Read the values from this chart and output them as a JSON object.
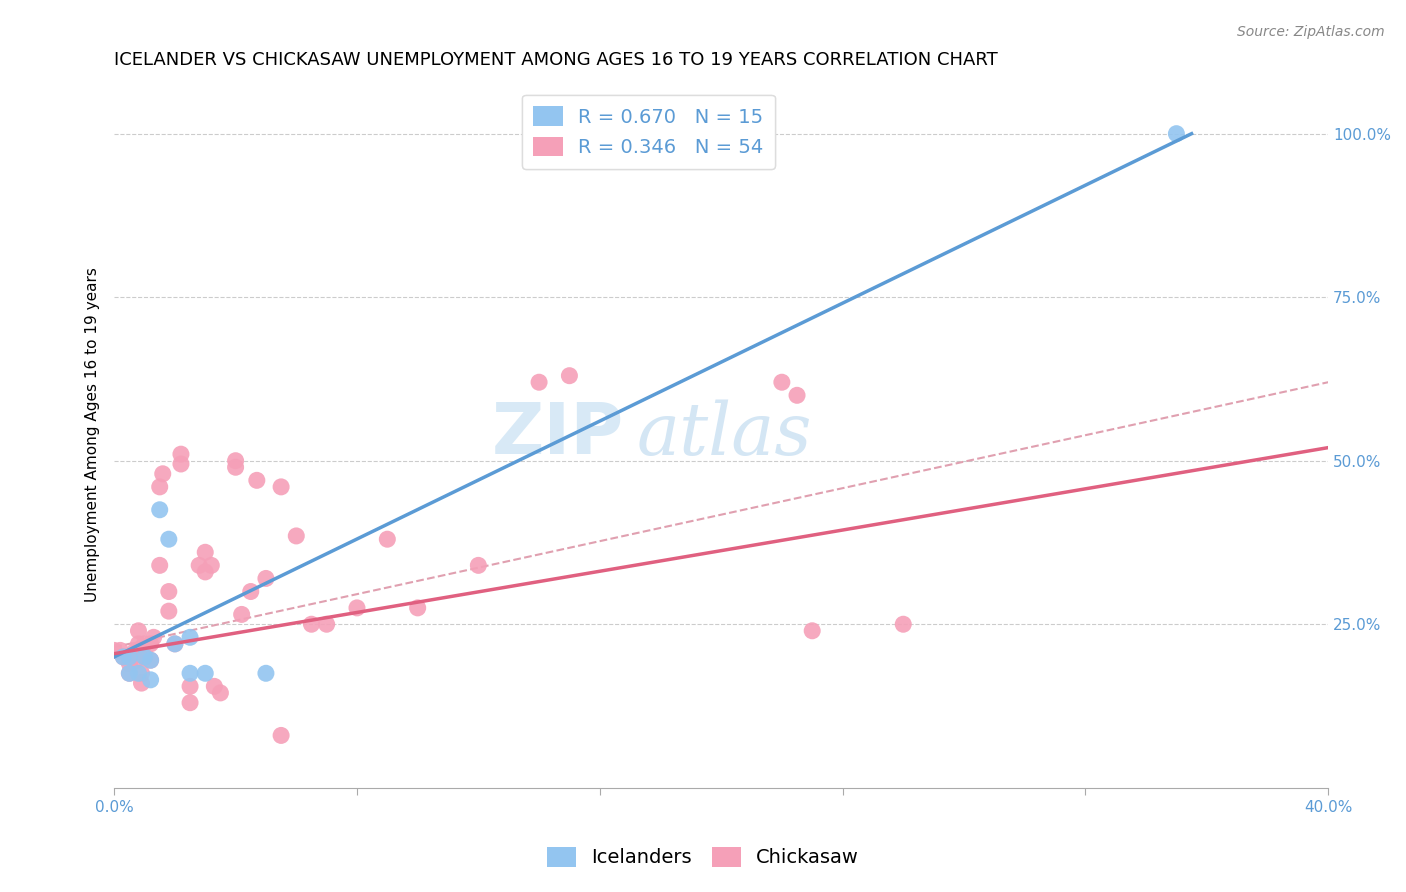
{
  "title": "ICELANDER VS CHICKASAW UNEMPLOYMENT AMONG AGES 16 TO 19 YEARS CORRELATION CHART",
  "source": "Source: ZipAtlas.com",
  "ylabel": "Unemployment Among Ages 16 to 19 years",
  "watermark_zip": "ZIP",
  "watermark_atlas": "atlas",
  "xlim": [
    0.0,
    0.4
  ],
  "ylim": [
    0.0,
    1.08
  ],
  "xticks": [
    0.0,
    0.08,
    0.16,
    0.24,
    0.32,
    0.4
  ],
  "xtick_labels": [
    "0.0%",
    "",
    "",
    "",
    "",
    "40.0%"
  ],
  "yticks_right": [
    0.0,
    0.25,
    0.5,
    0.75,
    1.0
  ],
  "ytick_labels_right": [
    "",
    "25.0%",
    "50.0%",
    "75.0%",
    "100.0%"
  ],
  "icelanders_color": "#93c5f0",
  "chickasaw_color": "#f5a0b8",
  "icelanders_R": 0.67,
  "icelanders_N": 15,
  "chickasaw_R": 0.346,
  "chickasaw_N": 54,
  "blue_accent": "#5b9bd5",
  "pink_accent": "#e06080",
  "icelanders_scatter_x": [
    0.003,
    0.005,
    0.005,
    0.008,
    0.01,
    0.012,
    0.012,
    0.015,
    0.018,
    0.02,
    0.025,
    0.025,
    0.03,
    0.05,
    0.35
  ],
  "icelanders_scatter_y": [
    0.2,
    0.2,
    0.175,
    0.175,
    0.2,
    0.165,
    0.195,
    0.425,
    0.38,
    0.22,
    0.23,
    0.175,
    0.175,
    0.175,
    1.0
  ],
  "chickasaw_scatter_x": [
    0.0,
    0.002,
    0.003,
    0.005,
    0.005,
    0.006,
    0.007,
    0.007,
    0.008,
    0.008,
    0.009,
    0.009,
    0.01,
    0.01,
    0.012,
    0.012,
    0.013,
    0.015,
    0.015,
    0.016,
    0.018,
    0.018,
    0.02,
    0.022,
    0.022,
    0.025,
    0.025,
    0.028,
    0.03,
    0.03,
    0.032,
    0.033,
    0.035,
    0.04,
    0.04,
    0.042,
    0.045,
    0.047,
    0.05,
    0.055,
    0.055,
    0.06,
    0.065,
    0.07,
    0.08,
    0.09,
    0.1,
    0.12,
    0.14,
    0.15,
    0.22,
    0.225,
    0.23,
    0.26
  ],
  "chickasaw_scatter_y": [
    0.21,
    0.21,
    0.2,
    0.19,
    0.175,
    0.2,
    0.195,
    0.21,
    0.22,
    0.24,
    0.175,
    0.16,
    0.22,
    0.2,
    0.195,
    0.22,
    0.23,
    0.34,
    0.46,
    0.48,
    0.27,
    0.3,
    0.22,
    0.495,
    0.51,
    0.13,
    0.155,
    0.34,
    0.36,
    0.33,
    0.34,
    0.155,
    0.145,
    0.5,
    0.49,
    0.265,
    0.3,
    0.47,
    0.32,
    0.08,
    0.46,
    0.385,
    0.25,
    0.25,
    0.275,
    0.38,
    0.275,
    0.34,
    0.62,
    0.63,
    0.62,
    0.6,
    0.24,
    0.25
  ],
  "blue_line_x": [
    0.0,
    0.355
  ],
  "blue_line_y": [
    0.2,
    1.0
  ],
  "pink_line_x": [
    0.0,
    0.4
  ],
  "pink_line_y": [
    0.205,
    0.52
  ],
  "dash_line_x": [
    0.0,
    0.4
  ],
  "dash_line_y": [
    0.215,
    0.62
  ],
  "title_fontsize": 13,
  "axis_label_fontsize": 11,
  "tick_fontsize": 11,
  "legend_fontsize": 14,
  "watermark_fontsize": 52
}
